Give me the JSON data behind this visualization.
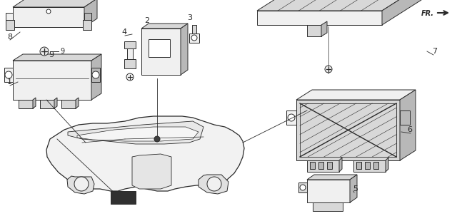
{
  "bg_color": "#ffffff",
  "lc": "#2a2a2a",
  "lw": 0.7,
  "figsize": [
    6.4,
    3.1
  ],
  "dpi": 100
}
